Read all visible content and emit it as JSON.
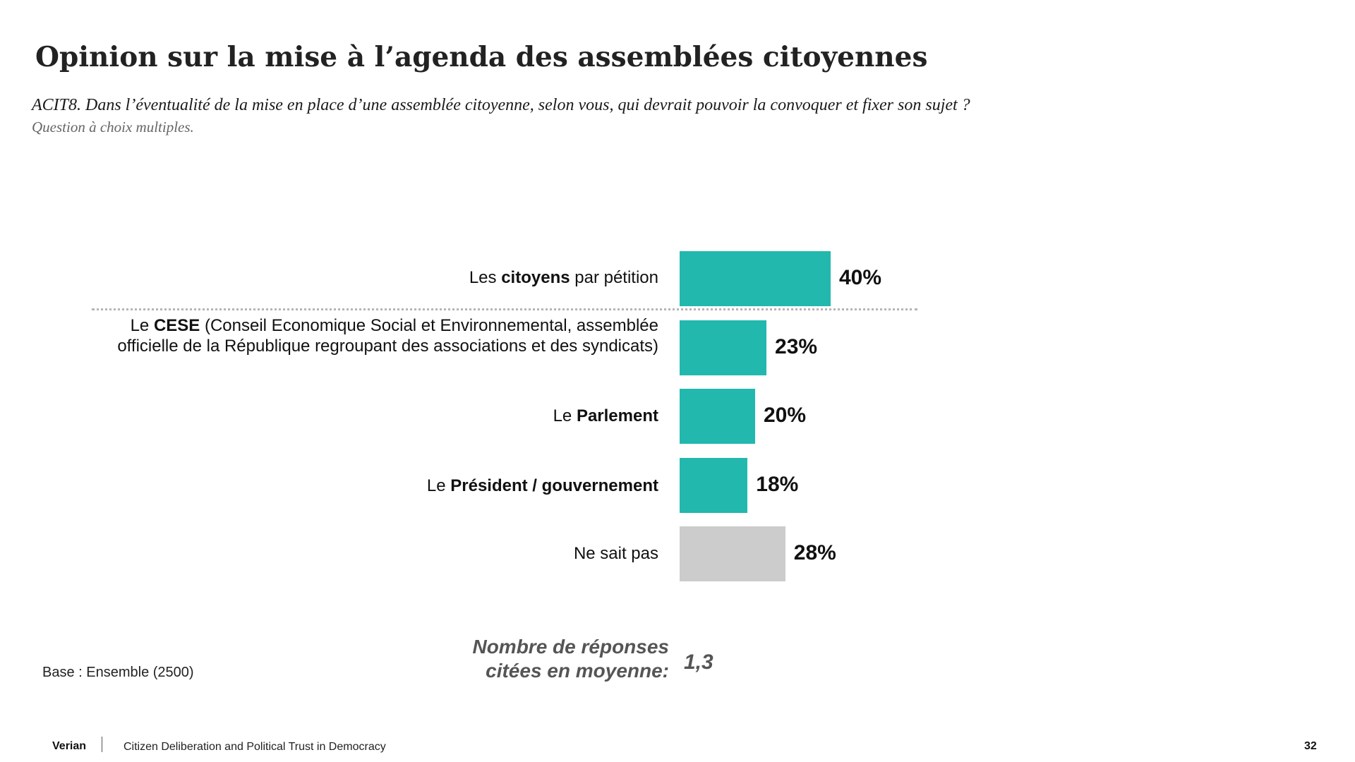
{
  "title": "Opinion sur la mise à l’agenda des assemblées citoyennes",
  "question": "ACIT8. Dans l’éventualité de la mise en place d’une assemblée citoyenne, selon vous, qui devrait pouvoir la convoquer et fixer son sujet ?",
  "question_note": "Question à choix multiples.",
  "chart_data": {
    "type": "bar",
    "orientation": "horizontal",
    "categories": [
      "Les citoyens par pétition",
      "Le CESE (Conseil Economique Social et Environnemental, assemblée officielle de la République regroupant des associations et des syndicats)",
      "Le Parlement",
      "Le Président / gouvernement",
      "Ne sait pas"
    ],
    "values": [
      40,
      23,
      20,
      18,
      28
    ],
    "value_labels": [
      "40%",
      "23%",
      "20%",
      "18%",
      "28%"
    ],
    "colors": [
      "#22b8ae",
      "#22b8ae",
      "#22b8ae",
      "#22b8ae",
      "#cccccc"
    ],
    "grid": false,
    "legend": "none"
  },
  "labels": [
    {
      "pre": "Les ",
      "bold": "citoyens",
      "post": " par pétition"
    },
    {
      "pre": "Le ",
      "bold": "CESE",
      "post": " (Conseil Economique Social et Environnemental, assemblée officielle de la République regroupant des associations et des syndicats)"
    },
    {
      "pre": "Le ",
      "bold": "Parlement",
      "post": ""
    },
    {
      "pre": "Le ",
      "bold": "Président / gouvernement",
      "post": ""
    },
    {
      "pre": "Ne sait pas",
      "bold": "",
      "post": ""
    }
  ],
  "average": {
    "label": "Nombre de réponses citées en moyenne:",
    "value": "1,3"
  },
  "base": "Base : Ensemble (2500)",
  "footer": {
    "brand": "Verian",
    "text": "Citizen Deliberation and Political Trust in Democracy",
    "page": "32"
  }
}
